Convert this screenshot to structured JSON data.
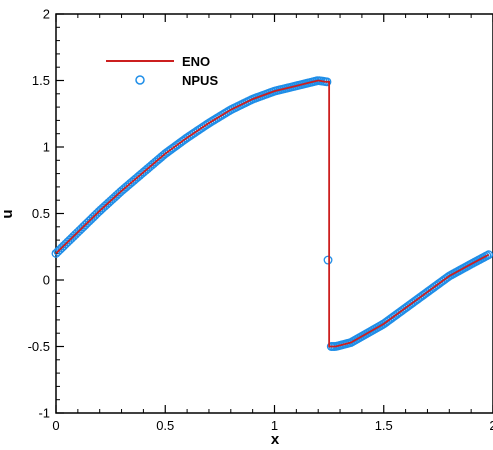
{
  "chart_data": {
    "type": "line",
    "title": "",
    "xlabel": "x",
    "ylabel": "u",
    "xlim": [
      0,
      2
    ],
    "ylim": [
      -1,
      2
    ],
    "x_ticks": [
      0,
      0.5,
      1,
      1.5,
      2
    ],
    "x_tick_labels": [
      "0",
      "0.5",
      "1",
      "1.5",
      "2"
    ],
    "y_ticks": [
      -1,
      -0.5,
      0,
      0.5,
      1,
      1.5,
      2
    ],
    "y_tick_labels": [
      "-1",
      "-0.5",
      "0",
      "0.5",
      "1",
      "1.5",
      "2"
    ],
    "grid": false,
    "legend_position": "top-left",
    "colors": {
      "ENO": "#cc1f1f",
      "NPUS": "#1f8ee8"
    },
    "series": [
      {
        "name": "ENO",
        "style": "line",
        "x": [
          0,
          0.1,
          0.2,
          0.3,
          0.4,
          0.5,
          0.6,
          0.7,
          0.8,
          0.9,
          1.0,
          1.1,
          1.15,
          1.2,
          1.235,
          1.25,
          1.25,
          1.28,
          1.35,
          1.5,
          1.65,
          1.8,
          1.9,
          1.98
        ],
        "y": [
          0.2,
          0.36,
          0.52,
          0.67,
          0.81,
          0.95,
          1.07,
          1.18,
          1.28,
          1.36,
          1.42,
          1.46,
          1.48,
          1.5,
          1.49,
          1.49,
          -0.5,
          -0.5,
          -0.47,
          -0.33,
          -0.15,
          0.03,
          0.12,
          0.19
        ]
      },
      {
        "name": "NPUS",
        "style": "circle-markers",
        "segments": [
          {
            "x_start": 0,
            "x_end": 1.24,
            "count": 140,
            "x": [
              0,
              0.1,
              0.2,
              0.3,
              0.4,
              0.5,
              0.6,
              0.7,
              0.8,
              0.9,
              1.0,
              1.1,
              1.15,
              1.2,
              1.24
            ],
            "y": [
              0.2,
              0.36,
              0.52,
              0.67,
              0.81,
              0.95,
              1.07,
              1.18,
              1.28,
              1.36,
              1.42,
              1.46,
              1.48,
              1.5,
              1.49
            ]
          },
          {
            "x_start": 1.26,
            "x_end": 1.98,
            "count": 90,
            "x": [
              1.26,
              1.28,
              1.35,
              1.5,
              1.65,
              1.8,
              1.9,
              1.98
            ],
            "y": [
              -0.5,
              -0.5,
              -0.47,
              -0.33,
              -0.15,
              0.03,
              0.12,
              0.19
            ]
          }
        ],
        "isolated_points": [
          {
            "x": 1.245,
            "y": 0.15
          }
        ]
      }
    ]
  }
}
